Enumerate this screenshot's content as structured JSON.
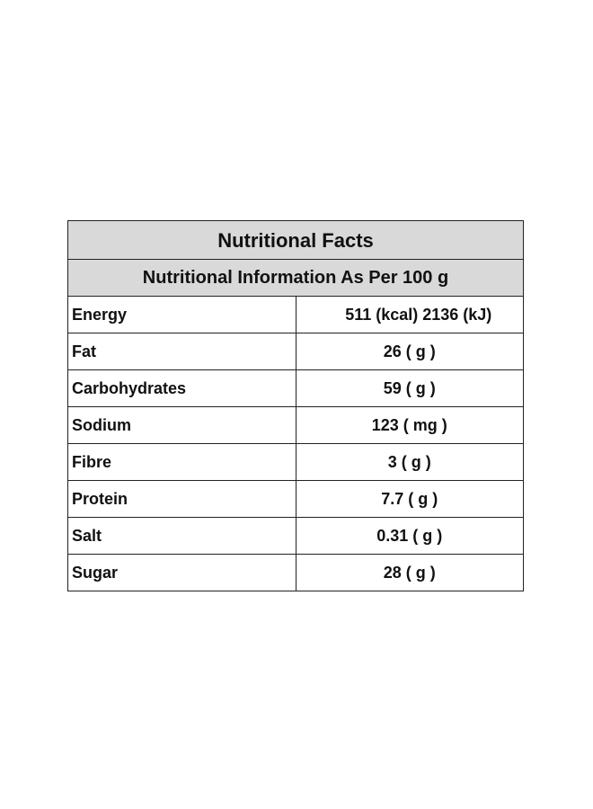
{
  "table": {
    "title": "Nutritional Facts",
    "subtitle": "Nutritional Information As Per 100 g",
    "rows": [
      {
        "label": "Energy",
        "value": "511 (kcal)  2136 (kJ)"
      },
      {
        "label": "Fat",
        "value": "26 ( g )"
      },
      {
        "label": "Carbohydrates",
        "value": "59 ( g )"
      },
      {
        "label": "Sodium",
        "value": "123 ( mg )"
      },
      {
        "label": "Fibre",
        "value": "3 ( g )"
      },
      {
        "label": "Protein",
        "value": "7.7 ( g )"
      },
      {
        "label": "Salt",
        "value": "0.31 ( g )"
      },
      {
        "label": "Sugar",
        "value": "28 ( g )"
      }
    ]
  }
}
